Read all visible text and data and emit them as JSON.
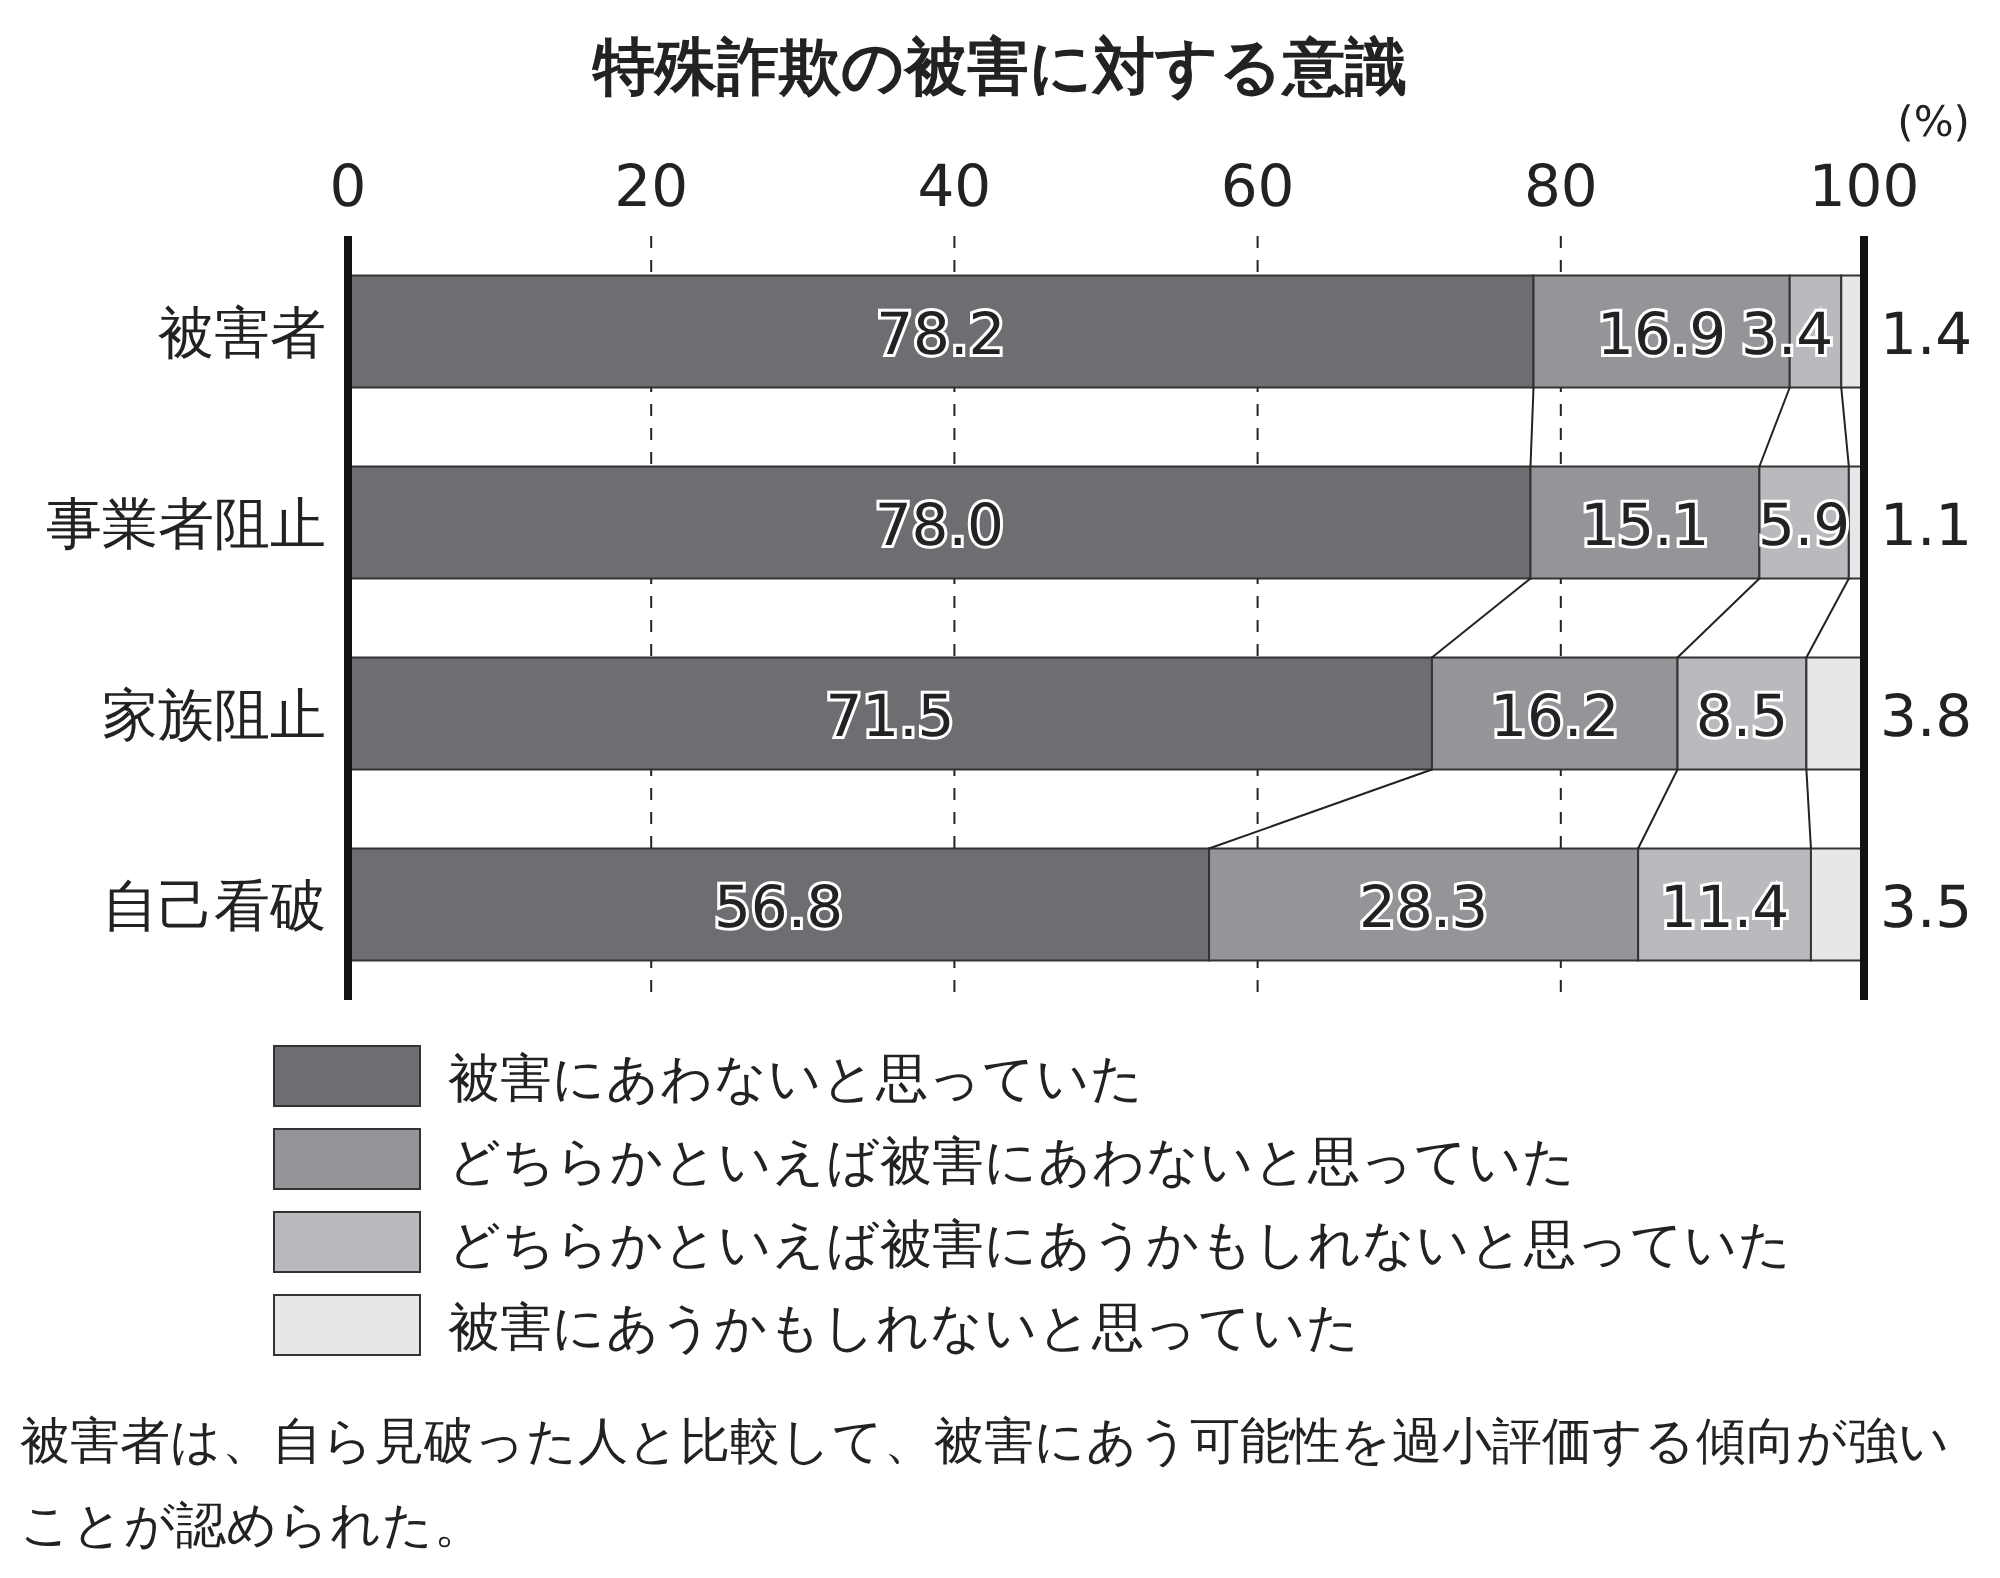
{
  "chart_data": {
    "type": "bar",
    "orientation": "horizontal",
    "stacked": true,
    "title": "特殊詐欺の被害に対する意識",
    "xlabel": "(%)",
    "categories": [
      "被害者",
      "事業者阻止",
      "家族阻止",
      "自己看破"
    ],
    "series": [
      {
        "name": "被害にあわないと思っていた",
        "color": "#6d6e72",
        "values": [
          78.2,
          78.0,
          71.5,
          56.8
        ],
        "value_labels": [
          "78.2",
          "78.0",
          "71.5",
          "56.8"
        ]
      },
      {
        "name": "どちらかといえば被害にあわないと思っていた",
        "color": "#949599",
        "values": [
          16.9,
          15.1,
          16.2,
          28.3
        ],
        "value_labels": [
          "16.9",
          "15.1",
          "16.2",
          "28.3"
        ]
      },
      {
        "name": "どちらかといえば被害にあうかもしれないと思っていた",
        "color": "#b9babd",
        "values": [
          3.4,
          5.9,
          8.5,
          11.4
        ],
        "value_labels": [
          "3.4",
          "5.9",
          "8.5",
          "11.4"
        ]
      },
      {
        "name": "被害にあうかもしれないと思っていた",
        "color": "#e6e7e8",
        "values": [
          1.4,
          1.1,
          3.8,
          3.5
        ],
        "value_labels": [
          "1.4",
          "1.1",
          "3.8",
          "3.5"
        ]
      }
    ],
    "xlim": [
      0,
      100
    ],
    "xticks": [
      0,
      20,
      40,
      60,
      80,
      100
    ],
    "grid": "x",
    "legend": "bottom",
    "annotations": [
      "被害者は、自ら見破った人と比較して、被害にあう可能性を過小評価する傾向が強いことが認められた。"
    ]
  }
}
